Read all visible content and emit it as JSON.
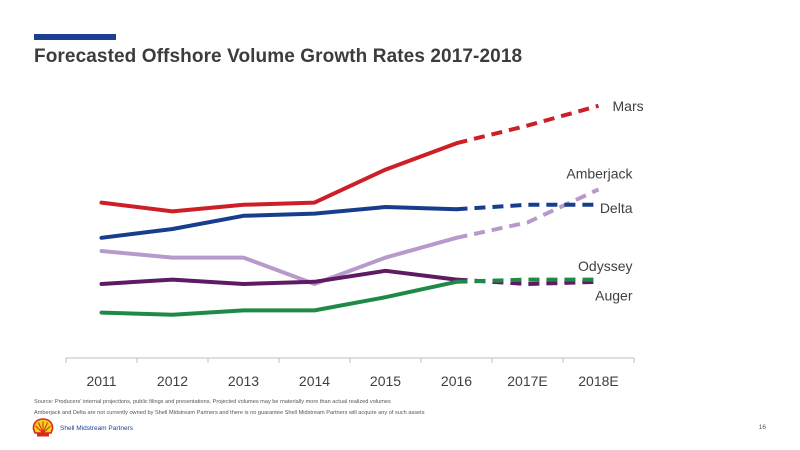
{
  "slide": {
    "title": "Forecasted Offshore Volume Growth Rates 2017-2018",
    "source_line_1": "Source: Producers' internal projections, public filings and presentations. Projected volumes may be materially more than actual realized volumes",
    "source_line_2": "Amberjack and Delta are not currently owned by Shell Midstream Partners and there is no guarantee Shell Midstream Partners will acquire any of such assets",
    "brand": "Shell Midstream Partners",
    "page_number": "16",
    "accent_color": "#1c3f94"
  },
  "chart_data": {
    "type": "line",
    "title": "",
    "xlabel": "",
    "ylabel": "",
    "categories": [
      "2011",
      "2012",
      "2013",
      "2014",
      "2015",
      "2016",
      "2017E",
      "2018E"
    ],
    "actual_through": "2016",
    "forecast_style": "dashed",
    "y_axis_shown": false,
    "grid": false,
    "ylim": [
      0,
      100
    ],
    "series": [
      {
        "name": "Mars",
        "color": "#cc1f27",
        "values": [
          62,
          58,
          61,
          62,
          77,
          89,
          97,
          106
        ]
      },
      {
        "name": "Amberjack",
        "color": "#b79acb",
        "values": [
          40,
          37,
          37,
          25,
          37,
          46,
          53,
          68
        ]
      },
      {
        "name": "Delta",
        "color": "#173d8c",
        "values": [
          46,
          50,
          56,
          57,
          60,
          59,
          61,
          61
        ]
      },
      {
        "name": "Odyssey",
        "color": "#5e1a63",
        "values": [
          25,
          27,
          25,
          26,
          31,
          27,
          25,
          26
        ]
      },
      {
        "name": "Auger",
        "color": "#1f8a48",
        "values": [
          12,
          11,
          13,
          13,
          19,
          26,
          27,
          27
        ]
      }
    ],
    "label_positions": {
      "Mars": "right",
      "Amberjack": "right-above",
      "Delta": "right",
      "Odyssey": "right-above",
      "Auger": "right-below"
    }
  }
}
